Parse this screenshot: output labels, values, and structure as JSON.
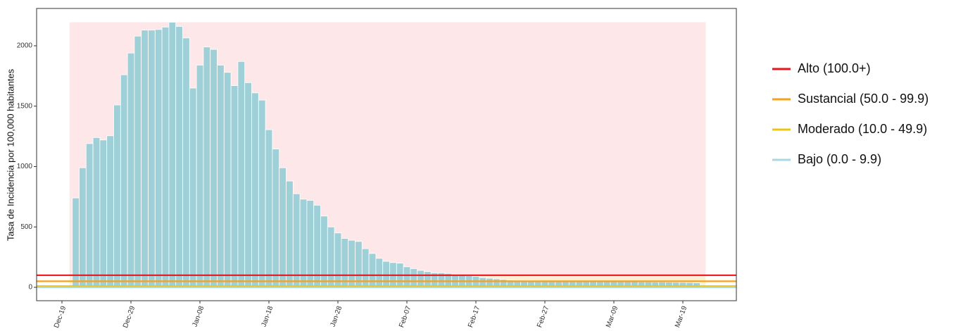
{
  "chart_data": {
    "type": "bar",
    "y_label": "Tasa de Incidencia por 100,000 habitantes",
    "categories": [
      "Dec-19",
      null,
      null,
      null,
      null,
      null,
      null,
      null,
      null,
      null,
      "Dec-29",
      null,
      null,
      null,
      null,
      null,
      null,
      null,
      null,
      null,
      "Jan-08",
      null,
      null,
      null,
      null,
      null,
      null,
      null,
      null,
      null,
      "Jan-18",
      null,
      null,
      null,
      null,
      null,
      null,
      null,
      null,
      null,
      "Jan-28",
      null,
      null,
      null,
      null,
      null,
      null,
      null,
      null,
      null,
      "Feb-07",
      null,
      null,
      null,
      null,
      null,
      null,
      null,
      null,
      null,
      "Feb-17",
      null,
      null,
      null,
      null,
      null,
      null,
      null,
      null,
      null,
      "Feb-27",
      null,
      null,
      null,
      null,
      null,
      null,
      null,
      null,
      null,
      "Mar-09",
      null,
      null,
      null,
      null,
      null,
      null,
      null,
      null,
      null,
      "Mar-19",
      null,
      null
    ],
    "values": [
      null,
      null,
      740,
      990,
      1190,
      1240,
      1220,
      1255,
      1510,
      1760,
      1940,
      2080,
      2130,
      2130,
      2135,
      2155,
      2195,
      2160,
      2065,
      1650,
      1840,
      1990,
      1970,
      1840,
      1780,
      1670,
      1870,
      1695,
      1610,
      1550,
      1305,
      1145,
      990,
      880,
      775,
      730,
      720,
      680,
      590,
      500,
      450,
      405,
      390,
      380,
      320,
      280,
      240,
      215,
      205,
      200,
      170,
      155,
      140,
      130,
      120,
      120,
      115,
      105,
      100,
      95,
      90,
      80,
      75,
      70,
      65,
      60,
      58,
      56,
      55,
      54,
      53,
      52,
      52,
      51,
      50,
      50,
      49,
      49,
      48,
      48,
      47,
      47,
      46,
      46,
      45,
      45,
      44,
      44,
      43,
      42,
      41,
      40,
      37
    ],
    "color": "#9fd0d8",
    "ylim": [
      -111,
      2309
    ],
    "yticks": [
      0,
      500,
      1000,
      1500,
      2000
    ],
    "grid": false,
    "legend_position": "right",
    "thresholds": [
      {
        "name": "Alto (100.0+)",
        "color": "#e8161b",
        "value": 100
      },
      {
        "name": "Sustancial (50.0 - 99.9)",
        "color": "#f5a21b",
        "value": 50
      },
      {
        "name": "Moderado (10.0 - 49.9)",
        "color": "#efc514",
        "value": 10
      },
      {
        "name": "Bajo (0.0 - 9.9)",
        "color": "#a8d8e4",
        "value": 0
      }
    ]
  }
}
